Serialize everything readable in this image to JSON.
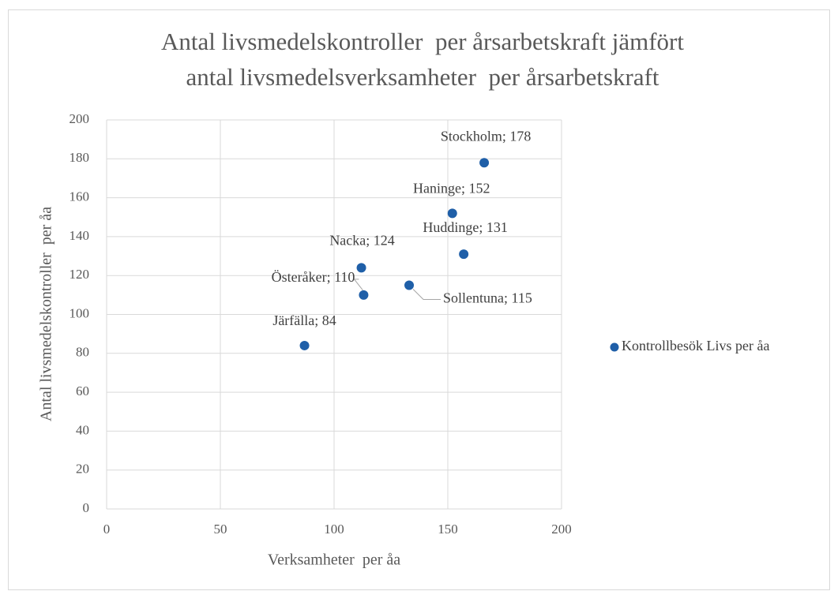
{
  "chart_data": {
    "type": "scatter",
    "title": [
      "Antal livsmedelskontroller  per årsarbetskraft jämfört",
      "antal livsmedelsverksamheter  per årsarbetskraft"
    ],
    "x_label": "Verksamheter  per åa",
    "y_label": "Antal livsmedelskontroller  per åa",
    "series": [
      {
        "name": "Kontrollbesök Livs per åa",
        "color": "#1f5fa8",
        "x": [
          166,
          152,
          157,
          112,
          113,
          133,
          87
        ],
        "values": [
          178,
          152,
          131,
          124,
          110,
          115,
          84
        ],
        "value_labels": [
          "Stockholm; 178",
          "Haninge; 152",
          "Huddinge; 131",
          "Nacka; 124",
          "Österåker; 110",
          "Sollentuna; 115",
          "Järfälla; 84"
        ]
      }
    ],
    "xlim": [
      0,
      200
    ],
    "xticks": [
      0,
      50,
      100,
      150,
      200
    ],
    "ylim": [
      0,
      200
    ],
    "yticks": [
      0,
      20,
      40,
      60,
      80,
      100,
      120,
      140,
      160,
      180,
      200
    ],
    "grid": true,
    "legend": "right"
  }
}
